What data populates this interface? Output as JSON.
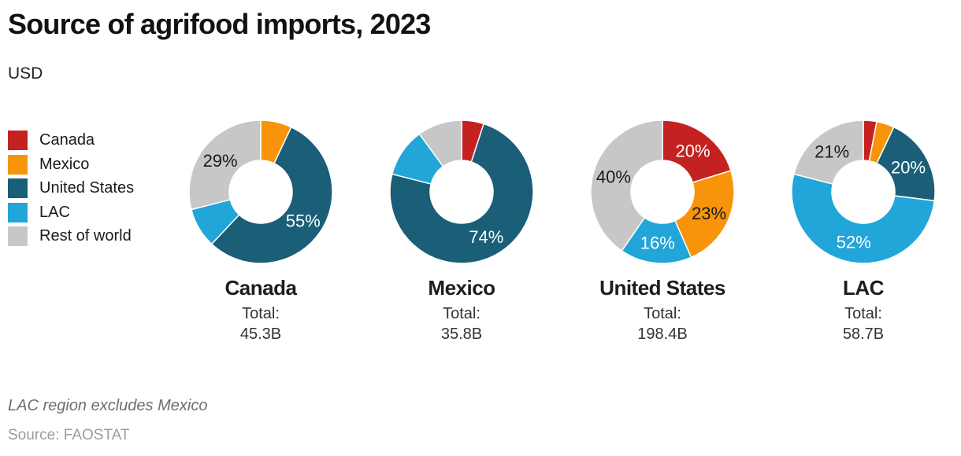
{
  "header": {
    "title": "Source of agrifood imports, 2023",
    "subtitle": "USD"
  },
  "legend": {
    "items": [
      {
        "label": "Canada",
        "color": "#c42221"
      },
      {
        "label": "Mexico",
        "color": "#f7940a"
      },
      {
        "label": "United States",
        "color": "#1a5e78"
      },
      {
        "label": "LAC",
        "color": "#22a5d8"
      },
      {
        "label": "Rest of world",
        "color": "#c7c7c7"
      }
    ]
  },
  "chart_data": {
    "type": "pie",
    "subtype": "donut",
    "title": "Source of agrifood imports, 2023",
    "unit": "USD",
    "legend_position": "left",
    "palette": {
      "Canada": "#c42221",
      "Mexico": "#f7940a",
      "United States": "#1a5e78",
      "LAC": "#22a5d8",
      "Rest of world": "#c7c7c7"
    },
    "label_colors": {
      "on_dark": "#ffffff",
      "on_light": "#1a1a1a"
    },
    "charts": [
      {
        "id": "canada",
        "title": "Canada",
        "total_label": "Total:",
        "total_value": "45.3B",
        "slices": [
          {
            "name": "Mexico",
            "value": 7,
            "label": ""
          },
          {
            "name": "United States",
            "value": 55,
            "label": "55%"
          },
          {
            "name": "LAC",
            "value": 9,
            "label": ""
          },
          {
            "name": "Rest of world",
            "value": 29,
            "label": "29%"
          }
        ]
      },
      {
        "id": "mexico",
        "title": "Mexico",
        "total_label": "Total:",
        "total_value": "35.8B",
        "slices": [
          {
            "name": "Canada",
            "value": 5,
            "label": ""
          },
          {
            "name": "United States",
            "value": 74,
            "label": "74%"
          },
          {
            "name": "LAC",
            "value": 11,
            "label": ""
          },
          {
            "name": "Rest of world",
            "value": 10,
            "label": ""
          }
        ]
      },
      {
        "id": "united-states",
        "title": "United States",
        "total_label": "Total:",
        "total_value": "198.4B",
        "slices": [
          {
            "name": "Canada",
            "value": 20,
            "label": "20%"
          },
          {
            "name": "Mexico",
            "value": 23,
            "label": "23%"
          },
          {
            "name": "LAC",
            "value": 16,
            "label": "16%"
          },
          {
            "name": "Rest of world",
            "value": 40,
            "label": "40%"
          }
        ]
      },
      {
        "id": "lac",
        "title": "LAC",
        "total_label": "Total:",
        "total_value": "58.7B",
        "slices": [
          {
            "name": "Canada",
            "value": 3,
            "label": ""
          },
          {
            "name": "Mexico",
            "value": 4,
            "label": ""
          },
          {
            "name": "United States",
            "value": 20,
            "label": "20%"
          },
          {
            "name": "LAC",
            "value": 52,
            "label": "52%"
          },
          {
            "name": "Rest of world",
            "value": 21,
            "label": "21%"
          }
        ]
      }
    ]
  },
  "footer": {
    "note": "LAC region excludes Mexico",
    "source": "Source: FAOSTAT"
  }
}
